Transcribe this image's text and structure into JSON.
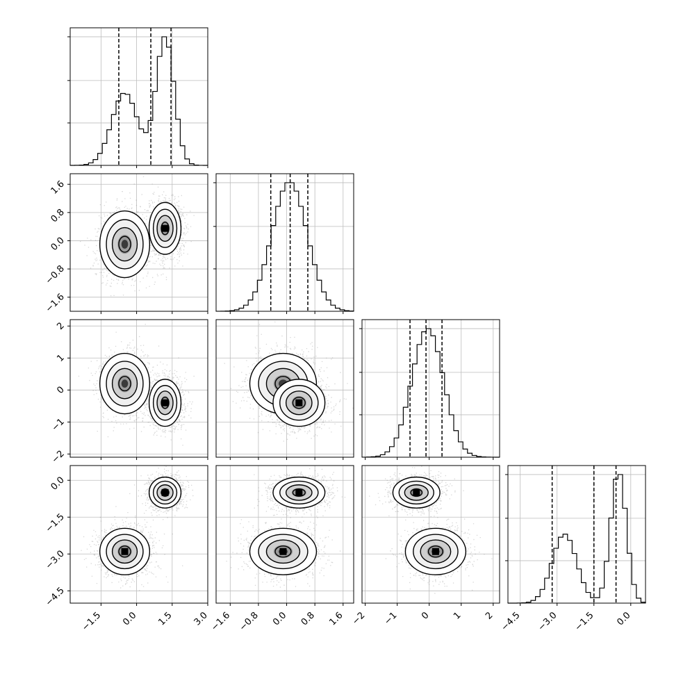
{
  "chart_data": {
    "type": "corner",
    "variables": [
      {
        "range": [
          -2.8,
          3.0
        ],
        "ticks": [
          -1.5,
          0.0,
          1.5,
          3.0
        ],
        "tick_labels": [
          "−1.5",
          "0.0",
          "1.5",
          "3.0"
        ],
        "quantiles": [
          -0.75,
          0.6,
          1.45
        ],
        "mixture": [
          {
            "w": 0.45,
            "mu": -0.5,
            "sd": 0.55
          },
          {
            "w": 0.55,
            "mu": 1.2,
            "sd": 0.38
          }
        ]
      },
      {
        "range": [
          -2.0,
          1.9
        ],
        "ticks": [
          -1.6,
          -0.8,
          0.0,
          0.8,
          1.6
        ],
        "tick_labels": [
          "−1.6",
          "−0.8",
          "0.0",
          "0.8",
          "1.6"
        ],
        "quantiles": [
          -0.45,
          0.1,
          0.6
        ],
        "mixture": [
          {
            "w": 1.0,
            "mu": 0.08,
            "sd": 0.5
          }
        ]
      },
      {
        "range": [
          -2.1,
          2.2
        ],
        "ticks": [
          -2,
          -1,
          0,
          1,
          2
        ],
        "tick_labels": [
          "−2",
          "−1",
          "0",
          "1",
          "2"
        ],
        "quantiles": [
          -0.6,
          -0.1,
          0.4
        ],
        "mixture": [
          {
            "w": 1.0,
            "mu": -0.05,
            "sd": 0.5
          }
        ]
      },
      {
        "range": [
          -5.0,
          0.6
        ],
        "ticks": [
          -4.5,
          -3.0,
          -1.5,
          0.0
        ],
        "tick_labels": [
          "−4.5",
          "−3.0",
          "−1.5",
          "0.0"
        ],
        "quantiles": [
          -3.2,
          -1.5,
          -0.6
        ],
        "mixture": [
          {
            "w": 0.45,
            "mu": -2.7,
            "sd": 0.5
          },
          {
            "w": 0.55,
            "mu": -0.5,
            "sd": 0.32
          }
        ]
      }
    ],
    "clusters": [
      {
        "weight": 0.45,
        "means": [
          -0.5,
          -0.1,
          0.2,
          -2.9
        ],
        "sds": [
          0.5,
          0.45,
          0.45,
          0.45
        ]
      },
      {
        "weight": 0.55,
        "means": [
          1.2,
          0.35,
          -0.4,
          -0.5
        ],
        "sds": [
          0.32,
          0.35,
          0.35,
          0.3
        ]
      }
    ],
    "grid": true
  }
}
